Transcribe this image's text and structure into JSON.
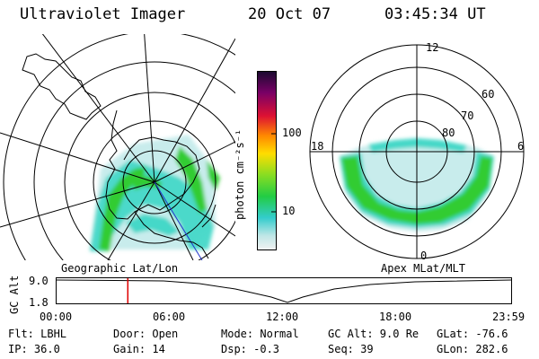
{
  "header": {
    "title": "Ultraviolet Imager",
    "date": "20 Oct 07",
    "time": "03:45:34 UT"
  },
  "colorbar": {
    "label": "photon cm⁻²s⁻¹",
    "ticks": [
      "100",
      "10"
    ]
  },
  "left_map": {
    "caption": "Geographic Lat/Lon"
  },
  "right_map": {
    "caption": "Apex MLat/MLT",
    "hour_labels": [
      "12",
      "18",
      "6",
      "0"
    ],
    "lat_labels": [
      "60",
      "70",
      "80"
    ]
  },
  "altitude_plot": {
    "ylabel": "GC Alt",
    "yticks": [
      "9.0",
      "1.8"
    ],
    "xticks": [
      "00:00",
      "06:00",
      "12:00",
      "18:00",
      "23:59"
    ],
    "marker_time_hours": 3.76
  },
  "info": {
    "flt": "Flt: LBHL",
    "ip": "IP: 36.0",
    "door": "Door: Open",
    "gain": "Gain: 14",
    "mode": "Mode: Normal",
    "dsp": "Dsp:    -0.3",
    "gcalt": "GC Alt: 9.0 Re",
    "seq": "Seq: 39",
    "glat": "GLat: -76.6",
    "glon": "GLon: 282.6"
  },
  "colors": {
    "axis": "#000000",
    "marker": "#e00000",
    "aurora_bright": "#33cc33",
    "aurora_mid": "#44d8c8",
    "aurora_low": "#c8ecec"
  }
}
